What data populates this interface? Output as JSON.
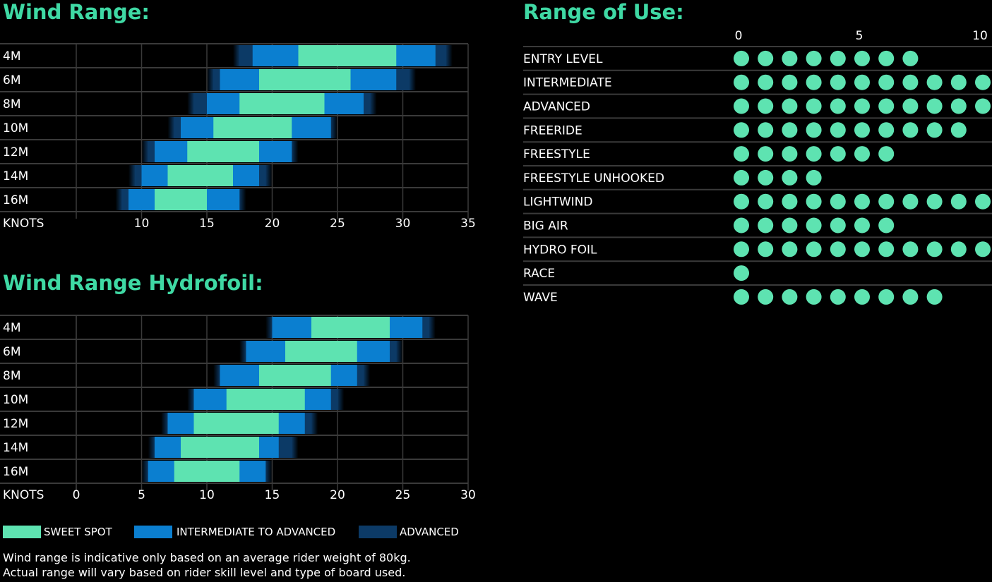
{
  "colors": {
    "accent": "#3fd9a4",
    "sweet": "#5ee3b1",
    "intermediate": "#0b7fd0",
    "advanced": "#0c3a66",
    "grid": "#3a3a3a"
  },
  "chart_data": [
    {
      "type": "bar",
      "subtype": "range",
      "title": "Wind Range:",
      "xlabel": "KNOTS",
      "xlim": [
        5,
        35
      ],
      "xticks": [
        10,
        15,
        20,
        25,
        30,
        35
      ],
      "categories": [
        "4M",
        "6M",
        "8M",
        "10M",
        "12M",
        "14M",
        "16M"
      ],
      "series": [
        {
          "name": "SWEET SPOT",
          "ranges": [
            [
              22,
              29.5
            ],
            [
              19,
              26
            ],
            [
              17.5,
              24
            ],
            [
              15.5,
              21.5
            ],
            [
              13.5,
              19
            ],
            [
              12,
              17
            ],
            [
              11,
              15
            ]
          ]
        },
        {
          "name": "INTERMEDIATE TO ADVANCED",
          "ranges": [
            [
              18.5,
              32.5
            ],
            [
              16,
              29.5
            ],
            [
              15,
              27
            ],
            [
              13,
              24.5
            ],
            [
              11,
              21.5
            ],
            [
              10,
              19
            ],
            [
              9,
              17.5
            ]
          ]
        },
        {
          "name": "ADVANCED",
          "ranges": [
            [
              17,
              33.8
            ],
            [
              15,
              31
            ],
            [
              13.5,
              28
            ],
            [
              12,
              25
            ],
            [
              10,
              22
            ],
            [
              9,
              20
            ],
            [
              8,
              18
            ]
          ]
        }
      ]
    },
    {
      "type": "bar",
      "subtype": "range",
      "title": "Wind Range Hydrofoil:",
      "xlabel": "KNOTS",
      "xlim": [
        0,
        30
      ],
      "xticks": [
        0,
        5,
        10,
        15,
        20,
        25,
        30
      ],
      "categories": [
        "4M",
        "6M",
        "8M",
        "10M",
        "12M",
        "14M",
        "16M"
      ],
      "series": [
        {
          "name": "SWEET SPOT",
          "ranges": [
            [
              18,
              24
            ],
            [
              16,
              21.5
            ],
            [
              14,
              19.5
            ],
            [
              11.5,
              17.5
            ],
            [
              9,
              15.5
            ],
            [
              8,
              14
            ],
            [
              7.5,
              12.5
            ]
          ]
        },
        {
          "name": "INTERMEDIATE TO ADVANCED",
          "ranges": [
            [
              15,
              26.5
            ],
            [
              13,
              24
            ],
            [
              11,
              21.5
            ],
            [
              9,
              19.5
            ],
            [
              7,
              17.5
            ],
            [
              6,
              15.5
            ],
            [
              5.5,
              14.5
            ]
          ]
        },
        {
          "name": "ADVANCED",
          "ranges": [
            [
              14.5,
              27.5
            ],
            [
              12.5,
              25
            ],
            [
              10.5,
              22.5
            ],
            [
              8.5,
              20.5
            ],
            [
              6.5,
              18.5
            ],
            [
              5.5,
              17
            ],
            [
              5,
              15
            ]
          ]
        }
      ]
    },
    {
      "type": "dot",
      "title": "Range of Use:",
      "xlim": [
        0,
        10
      ],
      "xticks": [
        0,
        5,
        10
      ],
      "categories": [
        "ENTRY LEVEL",
        "INTERMEDIATE",
        "ADVANCED",
        "FREERIDE",
        "FREESTYLE",
        "FREESTYLE UNHOOKED",
        "LIGHTWIND",
        "BIG AIR",
        "HYDRO FOIL",
        "RACE",
        "WAVE"
      ],
      "values": [
        8,
        11,
        11,
        10,
        7,
        4,
        11,
        7,
        11,
        1,
        9
      ]
    }
  ],
  "legend": [
    {
      "label": "SWEET SPOT",
      "color": "#5ee3b1"
    },
    {
      "label": "INTERMEDIATE TO ADVANCED",
      "color": "#0b7fd0"
    },
    {
      "label": "ADVANCED",
      "color": "#0c3a66"
    }
  ],
  "note": {
    "line1": "Wind range is indicative only based on an average rider weight of 80kg.",
    "line2": "Actual range will vary based on rider skill level and type of board used."
  }
}
